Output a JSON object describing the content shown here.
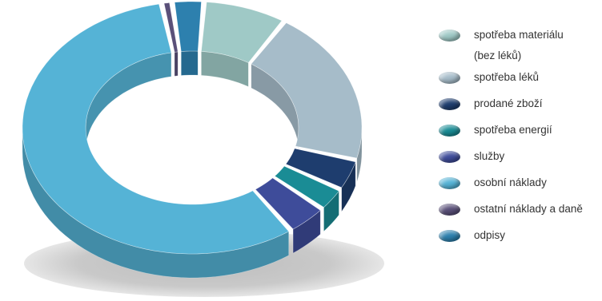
{
  "chart_data": {
    "type": "pie",
    "variant": "3d-donut",
    "categories": [
      {
        "label_lines": [
          "spotřeba materiálu",
          "(bez léků)"
        ],
        "value": 8,
        "color": "#9fc9c6"
      },
      {
        "label_lines": [
          "spotřeba léků"
        ],
        "value": 20,
        "color": "#a6bcc9"
      },
      {
        "label_lines": [
          "prodané zboží"
        ],
        "value": 4,
        "color": "#1e3d6e"
      },
      {
        "label_lines": [
          "spotřeba energií"
        ],
        "value": 3,
        "color": "#1a8c95"
      },
      {
        "label_lines": [
          "služby"
        ],
        "value": 4,
        "color": "#3e4c9a"
      },
      {
        "label_lines": [
          "osobní náklady"
        ],
        "value": 57,
        "color": "#55b3d6"
      },
      {
        "label_lines": [
          "ostatní náklady a daně"
        ],
        "value": 1,
        "color": "#5a5079"
      },
      {
        "label_lines": [
          "odpisy"
        ],
        "value": 3,
        "color": "#2d80ae"
      }
    ],
    "legend_position": "right"
  }
}
